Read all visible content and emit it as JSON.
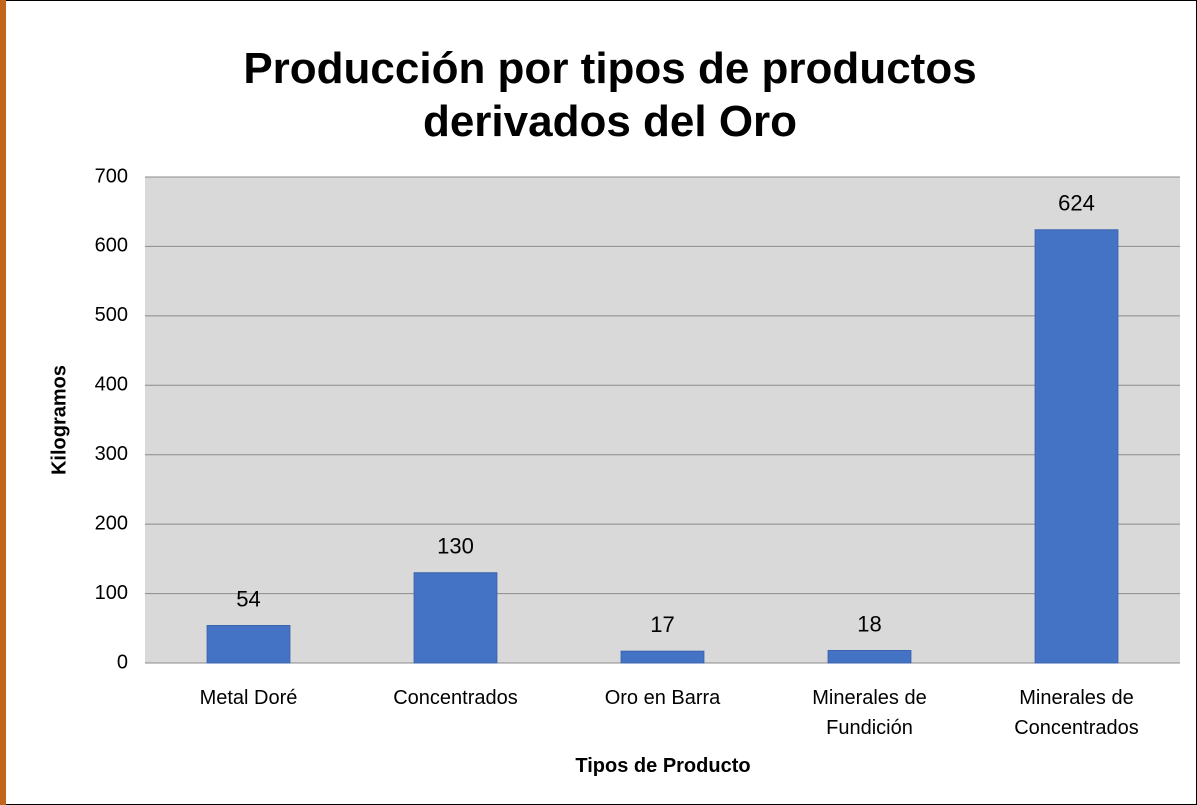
{
  "chart_data": {
    "type": "bar",
    "title": "Producción por tipos de productos derivados del Oro",
    "x_label": "Tipos de Producto",
    "y_label": "Kilogramos",
    "categories": [
      "Metal Doré",
      "Concentrados",
      "Oro en Barra",
      "Minerales de Fundición",
      "Minerales de Concentrados"
    ],
    "values": [
      54,
      130,
      17,
      18,
      624
    ],
    "color": "#4472c4",
    "ylim": [
      0,
      700
    ],
    "yticks": [
      0,
      100,
      200,
      300,
      400,
      500,
      600,
      700
    ],
    "grid": true
  }
}
